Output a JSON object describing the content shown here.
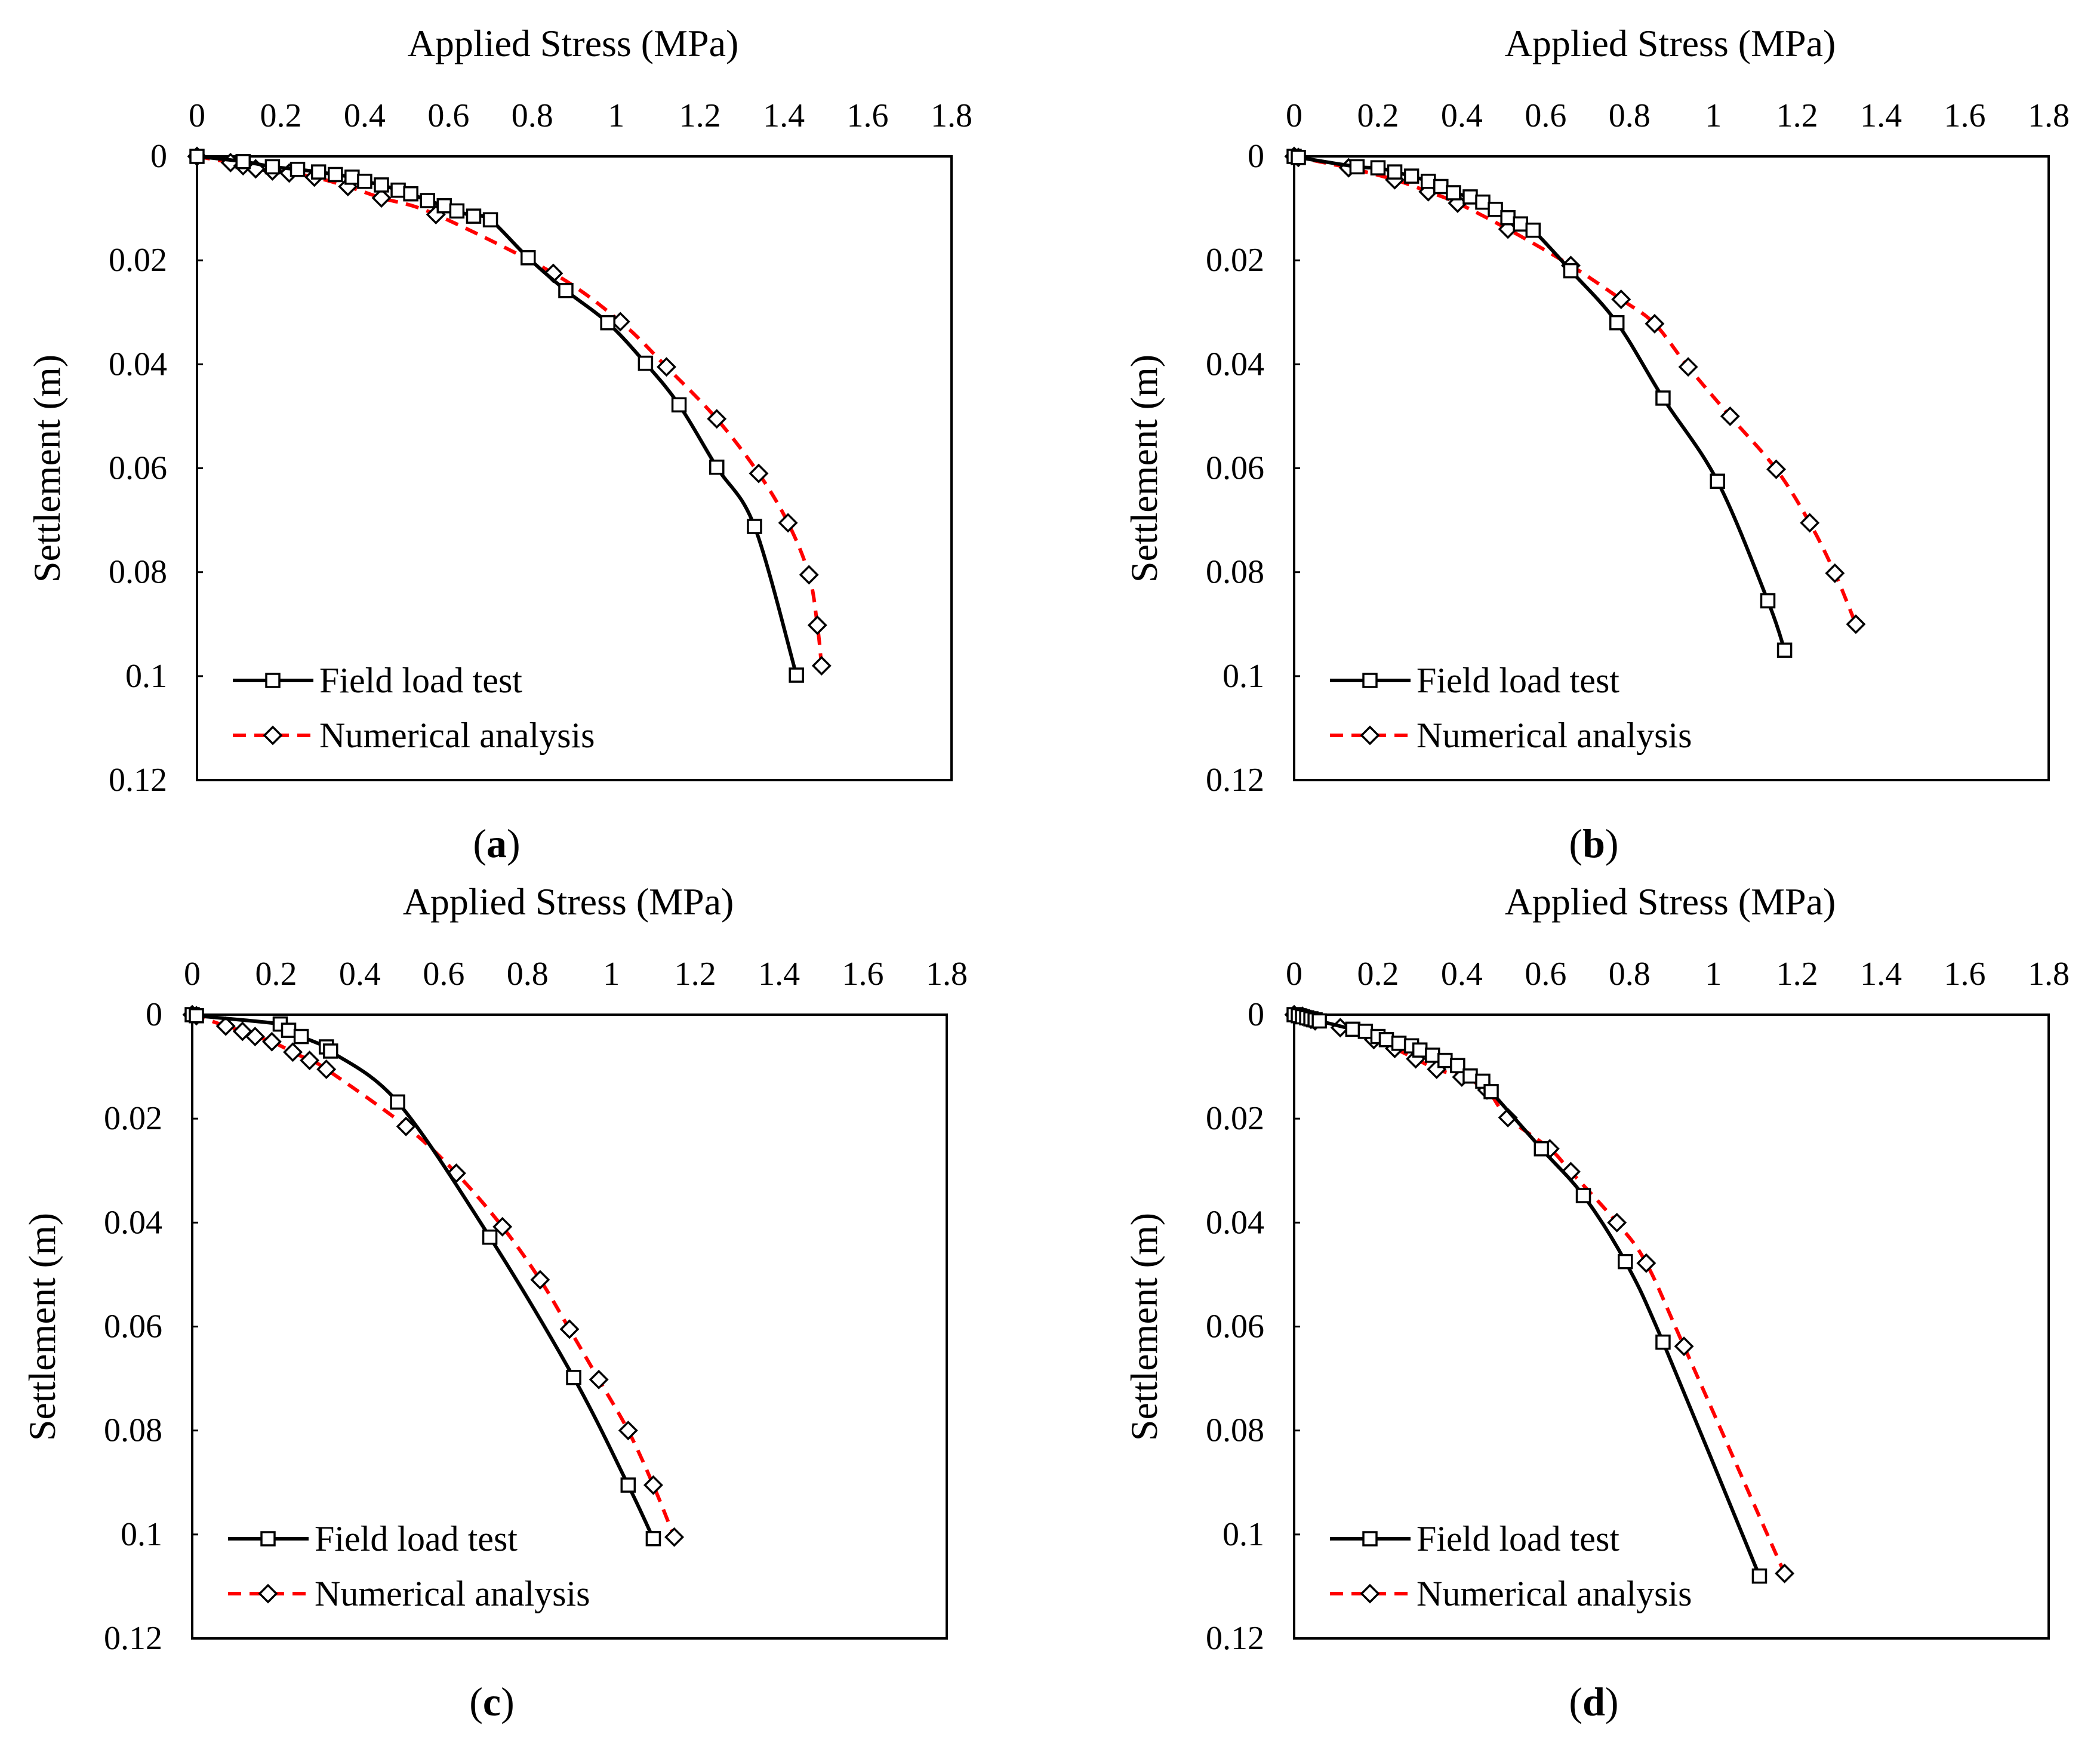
{
  "figure": {
    "colors": {
      "field": "#000000",
      "numerical": "#ff0000",
      "background": "#ffffff",
      "axes": "#000000"
    }
  },
  "chart_data": [
    {
      "type": "line",
      "panel_letter": "a",
      "caption_open": "(",
      "caption_close": ")",
      "title": "Applied Stress (MPa)",
      "xlabel": "Applied Stress (MPa)",
      "ylabel": "Settlement (m)",
      "xlim": [
        0,
        1.8
      ],
      "ylim": [
        0,
        0.12
      ],
      "y_inverted": true,
      "x_axis_position": "top",
      "x_tick_labels": [
        "0",
        "0.2",
        "0.4",
        "0.6",
        "0.8",
        "1",
        "1.2",
        "1.4",
        "1.6",
        "1.8"
      ],
      "y_tick_labels": [
        "0",
        "0.02",
        "0.04",
        "0.06",
        "0.08",
        "0.1",
        "0.12"
      ],
      "legend_position": "bottom-left",
      "series": [
        {
          "name": "Field load test",
          "marker": "square",
          "style": "solid",
          "color": "#000000",
          "x": [
            0.0,
            0.11,
            0.18,
            0.24,
            0.29,
            0.33,
            0.37,
            0.4,
            0.44,
            0.48,
            0.51,
            0.55,
            0.59,
            0.62,
            0.66,
            0.7,
            0.79,
            0.88,
            0.98,
            1.07,
            1.15,
            1.24,
            1.33,
            1.43
          ],
          "y": [
            0.0,
            0.001,
            0.002,
            0.0025,
            0.003,
            0.0035,
            0.004,
            0.0048,
            0.0055,
            0.0065,
            0.0072,
            0.0085,
            0.0095,
            0.0105,
            0.0115,
            0.0122,
            0.0195,
            0.0258,
            0.032,
            0.0398,
            0.0478,
            0.0598,
            0.0712,
            0.0998
          ]
        },
        {
          "name": "Numerical analysis",
          "marker": "diamond",
          "style": "dashed",
          "color": "#ff0000",
          "x": [
            0.0,
            0.08,
            0.11,
            0.14,
            0.18,
            0.22,
            0.28,
            0.36,
            0.44,
            0.57,
            0.85,
            1.01,
            1.12,
            1.24,
            1.34,
            1.41,
            1.46,
            1.48,
            1.49
          ],
          "y": [
            0.0,
            0.0012,
            0.0018,
            0.0024,
            0.0028,
            0.0032,
            0.004,
            0.0058,
            0.008,
            0.0112,
            0.0225,
            0.0318,
            0.0405,
            0.0505,
            0.061,
            0.0705,
            0.0805,
            0.0902,
            0.098
          ]
        }
      ]
    },
    {
      "type": "line",
      "panel_letter": "b",
      "caption_open": "(",
      "caption_close": ")",
      "title": "Applied Stress (MPa)",
      "xlabel": "Applied Stress (MPa)",
      "ylabel": "Settlement (m)",
      "xlim": [
        0,
        1.8
      ],
      "ylim": [
        0,
        0.12
      ],
      "y_inverted": true,
      "x_axis_position": "top",
      "x_tick_labels": [
        "0",
        "0.2",
        "0.4",
        "0.6",
        "0.8",
        "1",
        "1.2",
        "1.4",
        "1.6",
        "1.8"
      ],
      "y_tick_labels": [
        "0",
        "0.02",
        "0.04",
        "0.06",
        "0.08",
        "0.1",
        "0.12"
      ],
      "legend_position": "bottom-left",
      "series": [
        {
          "name": "Field load test",
          "marker": "square",
          "style": "solid",
          "color": "#000000",
          "x": [
            0.0,
            0.01,
            0.15,
            0.2,
            0.24,
            0.28,
            0.32,
            0.35,
            0.38,
            0.42,
            0.45,
            0.48,
            0.51,
            0.54,
            0.57,
            0.66,
            0.77,
            0.88,
            1.01,
            1.13,
            1.17
          ],
          "y": [
            0.0,
            0.0002,
            0.002,
            0.0022,
            0.003,
            0.0038,
            0.0048,
            0.0058,
            0.007,
            0.0078,
            0.0088,
            0.0102,
            0.0118,
            0.013,
            0.0142,
            0.022,
            0.032,
            0.0465,
            0.0625,
            0.0855,
            0.095
          ]
        },
        {
          "name": "Numerical analysis",
          "marker": "diamond",
          "style": "dashed",
          "color": "#ff0000",
          "x": [
            0.0,
            0.01,
            0.13,
            0.24,
            0.32,
            0.39,
            0.51,
            0.66,
            0.78,
            0.86,
            0.94,
            1.04,
            1.15,
            1.23,
            1.29,
            1.34
          ],
          "y": [
            0.0,
            0.0002,
            0.0022,
            0.0045,
            0.0068,
            0.009,
            0.014,
            0.021,
            0.0275,
            0.0322,
            0.0405,
            0.05,
            0.0602,
            0.0705,
            0.0802,
            0.09
          ]
        }
      ]
    },
    {
      "type": "line",
      "panel_letter": "c",
      "caption_open": "(",
      "caption_close": ")",
      "title": "Applied Stress (MPa)",
      "xlabel": "Applied Stress (MPa)",
      "ylabel": "Settlement (m)",
      "xlim": [
        0,
        1.8
      ],
      "ylim": [
        0,
        0.12
      ],
      "y_inverted": true,
      "x_axis_position": "top",
      "x_tick_labels": [
        "0",
        "0.2",
        "0.4",
        "0.6",
        "0.8",
        "1",
        "1.2",
        "1.4",
        "1.6",
        "1.8"
      ],
      "y_tick_labels": [
        "0",
        "0.02",
        "0.04",
        "0.06",
        "0.08",
        "0.1",
        "0.12"
      ],
      "legend_position": "bottom-left",
      "series": [
        {
          "name": "Field load test",
          "marker": "square",
          "style": "solid",
          "color": "#000000",
          "x": [
            0.0,
            0.01,
            0.21,
            0.23,
            0.26,
            0.32,
            0.33,
            0.49,
            0.71,
            0.91,
            1.04,
            1.1
          ],
          "y": [
            0.0,
            0.0002,
            0.0018,
            0.003,
            0.0042,
            0.0062,
            0.007,
            0.0168,
            0.0428,
            0.0698,
            0.0905,
            0.1008
          ]
        },
        {
          "name": "Numerical analysis",
          "marker": "diamond",
          "style": "dashed",
          "color": "#ff0000",
          "x": [
            0.0,
            0.01,
            0.08,
            0.12,
            0.15,
            0.19,
            0.24,
            0.28,
            0.32,
            0.51,
            0.63,
            0.74,
            0.83,
            0.9,
            0.97,
            1.04,
            1.1,
            1.15
          ],
          "y": [
            0.0,
            0.0002,
            0.0022,
            0.0032,
            0.0042,
            0.0052,
            0.0072,
            0.0088,
            0.0105,
            0.0215,
            0.0305,
            0.0408,
            0.051,
            0.0605,
            0.0702,
            0.08,
            0.0905,
            0.1005
          ]
        }
      ]
    },
    {
      "type": "line",
      "panel_letter": "d",
      "caption_open": "(",
      "caption_close": ")",
      "title": "Applied Stress (MPa)",
      "xlabel": "Applied Stress (MPa)",
      "ylabel": "Settlement (m)",
      "xlim": [
        0,
        1.8
      ],
      "ylim": [
        0,
        0.12
      ],
      "y_inverted": true,
      "x_axis_position": "top",
      "x_tick_labels": [
        "0",
        "0.2",
        "0.4",
        "0.6",
        "0.8",
        "1",
        "1.2",
        "1.4",
        "1.6",
        "1.8"
      ],
      "y_tick_labels": [
        "0",
        "0.02",
        "0.04",
        "0.06",
        "0.08",
        "0.1",
        "0.12"
      ],
      "legend_position": "bottom-left",
      "series": [
        {
          "name": "Field load test",
          "marker": "square",
          "style": "solid",
          "color": "#000000",
          "x": [
            0.0,
            0.01,
            0.02,
            0.03,
            0.04,
            0.05,
            0.06,
            0.14,
            0.17,
            0.2,
            0.22,
            0.25,
            0.28,
            0.3,
            0.33,
            0.36,
            0.39,
            0.42,
            0.45,
            0.47,
            0.59,
            0.69,
            0.79,
            0.88,
            1.11
          ],
          "y": [
            0.0,
            0.0002,
            0.0004,
            0.0006,
            0.0008,
            0.001,
            0.0012,
            0.0028,
            0.0032,
            0.0042,
            0.0048,
            0.0055,
            0.006,
            0.0068,
            0.0078,
            0.0088,
            0.0098,
            0.0118,
            0.0128,
            0.0148,
            0.0258,
            0.0348,
            0.0475,
            0.063,
            0.108
          ]
        },
        {
          "name": "Numerical analysis",
          "marker": "diamond",
          "style": "dashed",
          "color": "#ff0000",
          "x": [
            0.0,
            0.02,
            0.03,
            0.04,
            0.05,
            0.11,
            0.19,
            0.24,
            0.29,
            0.34,
            0.4,
            0.46,
            0.51,
            0.61,
            0.66,
            0.77,
            0.84,
            0.93,
            1.17
          ],
          "y": [
            0.0,
            0.0003,
            0.0006,
            0.0009,
            0.0012,
            0.0025,
            0.0048,
            0.0065,
            0.0085,
            0.0105,
            0.012,
            0.0145,
            0.0198,
            0.0258,
            0.0302,
            0.04,
            0.0478,
            0.0638,
            0.1075
          ]
        }
      ]
    }
  ]
}
